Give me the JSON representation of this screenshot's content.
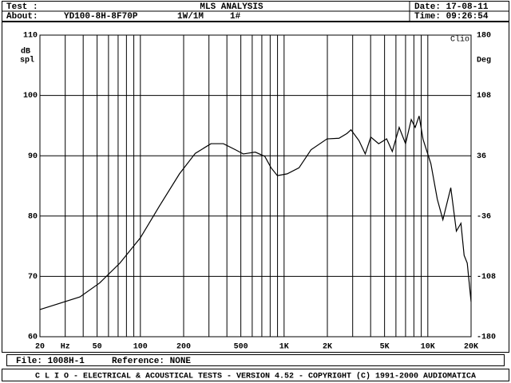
{
  "header": {
    "test_label": "Test :",
    "title": "MLS ANALYSIS",
    "date": "Date: 17-08-11",
    "about_label": "About:",
    "device": "YD100-8H-8F70P",
    "level": "1W/1M",
    "number": "1#",
    "time": "Time: 09:26:54"
  },
  "chart_data": {
    "type": "line",
    "xscale": "log",
    "grid": true,
    "color": "#000000",
    "y_label_top": "dB",
    "y_label_bottom": "spl",
    "y2_label": "Deg",
    "brand": "Clio",
    "x_unit": "Hz",
    "xlim": [
      20,
      20000
    ],
    "ylim": [
      60,
      110
    ],
    "y2lim": [
      -180,
      180
    ],
    "xticks": [
      20,
      50,
      100,
      200,
      500,
      {
        "value": 1000,
        "label": "1K"
      },
      {
        "value": 2000,
        "label": "2K"
      },
      {
        "value": 5000,
        "label": "5K"
      },
      {
        "value": 10000,
        "label": "10K"
      },
      {
        "value": 20000,
        "label": "20K"
      }
    ],
    "xminor": [
      30,
      40,
      60,
      70,
      80,
      90,
      300,
      400,
      600,
      700,
      800,
      900,
      3000,
      4000,
      6000,
      7000,
      8000,
      9000
    ],
    "yticks": [
      60,
      70,
      80,
      90,
      100,
      110
    ],
    "y2ticks": [
      -180,
      -108,
      -36,
      36,
      108,
      180
    ],
    "x": [
      20,
      38,
      52,
      72,
      100,
      136,
      187,
      241,
      310,
      378,
      458,
      520,
      630,
      734,
      812,
      898,
      1050,
      1270,
      1540,
      1990,
      2410,
      2740,
      2920,
      3320,
      3670,
      4010,
      4550,
      5170,
      5660,
      6320,
      7000,
      7670,
      8170,
      8700,
      9270,
      10500,
      11640,
      12730,
      14450,
      15800,
      17000,
      17890,
      18810,
      20000
    ],
    "values": [
      64.5,
      66.6,
      68.9,
      72.2,
      76.4,
      81.7,
      87.0,
      90.4,
      92.0,
      92.0,
      91.0,
      90.3,
      90.6,
      89.9,
      88.0,
      86.7,
      87.0,
      88.0,
      91.0,
      92.8,
      92.9,
      93.7,
      94.3,
      92.5,
      90.3,
      93.1,
      92.0,
      92.8,
      90.7,
      94.7,
      92.0,
      96.0,
      94.7,
      96.6,
      92.7,
      88.7,
      82.8,
      79.4,
      84.7,
      77.5,
      78.8,
      73.5,
      72.2,
      65.8
    ]
  },
  "footer": {
    "file": "File: 1008H-1",
    "reference": "Reference: NONE",
    "credits": "C L I O  -  ELECTRICAL & ACOUSTICAL TESTS  -  VERSION 4.52  -  COPYRIGHT (C) 1991-2000 AUDIOMATICA"
  }
}
